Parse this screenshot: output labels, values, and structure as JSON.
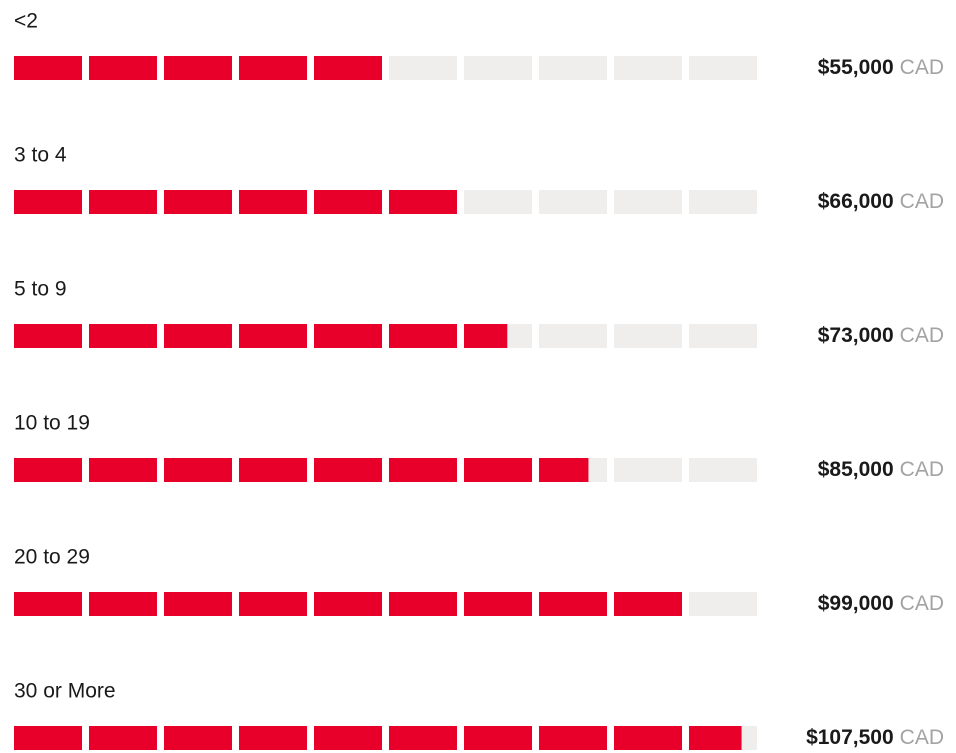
{
  "chart_data": {
    "type": "bar",
    "categories": [
      "<2",
      "3 to 4",
      "5 to 9",
      "10 to 19",
      "20 to 29",
      "30 or More"
    ],
    "values": [
      55000,
      66000,
      73000,
      85000,
      99000,
      107500
    ],
    "value_labels": [
      "$55,000",
      "$66,000",
      "$73,000",
      "$85,000",
      "$99,000",
      "$107,500"
    ],
    "unit": "CAD",
    "xlim": [
      0,
      110000
    ],
    "segments": 10,
    "color": "#e8002a",
    "track_color": "#efeeed"
  }
}
